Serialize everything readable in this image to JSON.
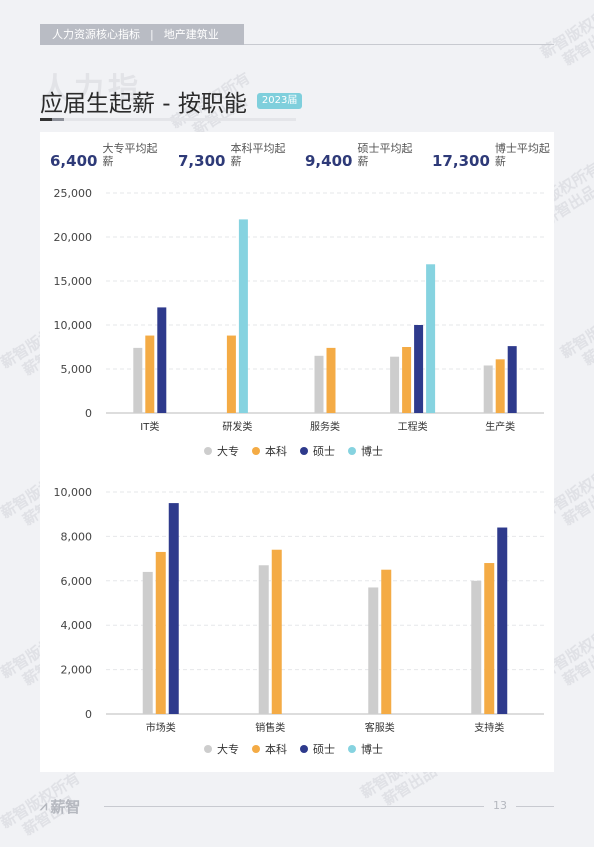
{
  "header": {
    "section": "人力资源核心指标",
    "separator": "|",
    "industry": "地产建筑业"
  },
  "ghost_title": "人力指",
  "title": "应届生起薪 - 按职能",
  "year_badge": "2023届",
  "stats": [
    {
      "value": "6,400",
      "label": "大专平均起薪"
    },
    {
      "value": "7,300",
      "label": "本科平均起薪"
    },
    {
      "value": "9,400",
      "label": "硕士平均起薪"
    },
    {
      "value": "17,300",
      "label": "博士平均起薪"
    }
  ],
  "colors": {
    "大专": "#cdcdcd",
    "本科": "#f4ab45",
    "硕士": "#2e3a8c",
    "博士": "#86d3e0",
    "accent_dark": "#2e3a78",
    "title_bar_dark": "#333333",
    "title_bar_light": "#c7c9ce"
  },
  "legend": [
    "大专",
    "本科",
    "硕士",
    "博士"
  ],
  "chart_data": [
    {
      "type": "bar",
      "categories": [
        "IT类",
        "研发类",
        "服务类",
        "工程类",
        "生产类"
      ],
      "series": [
        {
          "name": "大专",
          "values": [
            7400,
            null,
            6500,
            6400,
            5400
          ]
        },
        {
          "name": "本科",
          "values": [
            8800,
            8800,
            7400,
            7500,
            6100
          ]
        },
        {
          "name": "硕士",
          "values": [
            12000,
            null,
            null,
            10000,
            7600
          ]
        },
        {
          "name": "博士",
          "values": [
            null,
            22000,
            null,
            16900,
            null
          ]
        }
      ],
      "yticks": [
        "25,000",
        "20,000",
        "15,000",
        "10,000",
        "5,000",
        "0"
      ],
      "ylim": [
        0,
        25000
      ],
      "grid": true,
      "legend_position": "bottom"
    },
    {
      "type": "bar",
      "categories": [
        "市场类",
        "销售类",
        "客服类",
        "支持类"
      ],
      "series": [
        {
          "name": "大专",
          "values": [
            6400,
            6700,
            5700,
            6000
          ]
        },
        {
          "name": "本科",
          "values": [
            7300,
            7400,
            6500,
            6800
          ]
        },
        {
          "name": "硕士",
          "values": [
            9500,
            null,
            null,
            8400
          ]
        },
        {
          "name": "博士",
          "values": [
            null,
            null,
            null,
            null
          ]
        }
      ],
      "yticks": [
        "10,000",
        "8,000",
        "6,000",
        "4,000",
        "2,000",
        "0"
      ],
      "ylim": [
        0,
        10000
      ],
      "grid": true,
      "legend_position": "bottom"
    }
  ],
  "watermark": {
    "line1": "薪智版权所有",
    "line2": "薪智出品"
  },
  "footer": {
    "logo": "薪智",
    "page_number": "13"
  }
}
